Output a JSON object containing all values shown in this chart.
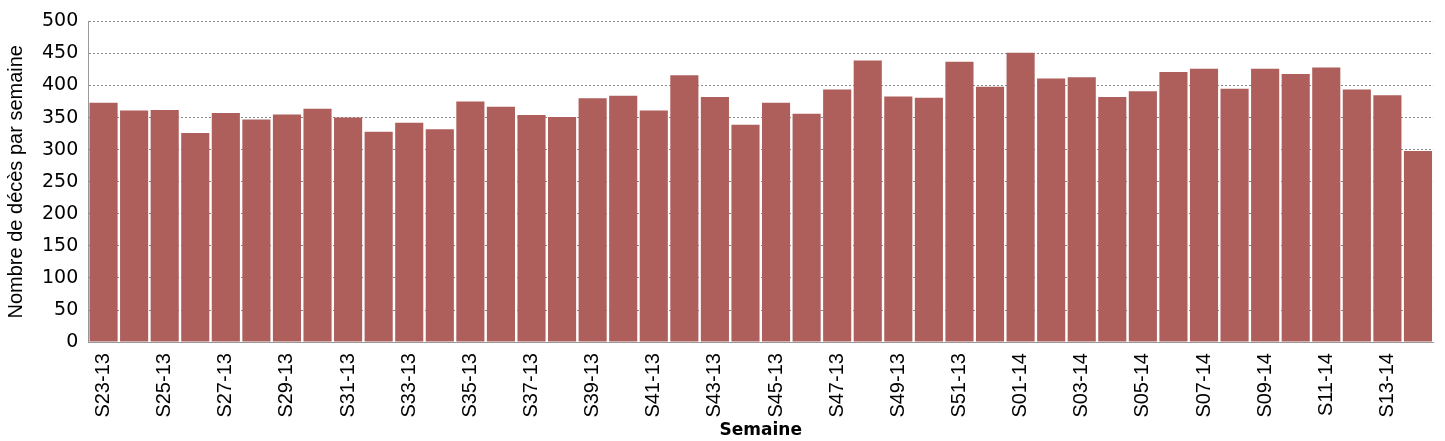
{
  "chart_data": {
    "type": "bar",
    "xlabel": "Semaine",
    "ylabel": "Nombre de décès par semaine",
    "categories": [
      "S23-13",
      null,
      "S25-13",
      null,
      "S27-13",
      null,
      "S29-13",
      null,
      "S31-13",
      null,
      "S33-13",
      null,
      "S35-13",
      null,
      "S37-13",
      null,
      "S39-13",
      null,
      "S41-13",
      null,
      "S43-13",
      null,
      "S45-13",
      null,
      "S47-13",
      null,
      "S49-13",
      null,
      "S51-13",
      null,
      "S01-14",
      null,
      "S03-14",
      null,
      "S05-14",
      null,
      "S07-14",
      null,
      "S09-14",
      null,
      "S11-14",
      null,
      "S13-14",
      null
    ],
    "values": [
      373,
      361,
      362,
      326,
      357,
      347,
      355,
      364,
      350,
      328,
      342,
      332,
      375,
      367,
      354,
      351,
      380,
      384,
      361,
      416,
      382,
      339,
      373,
      356,
      394,
      439,
      383,
      381,
      437,
      398,
      451,
      411,
      413,
      382,
      391,
      421,
      426,
      395,
      426,
      418,
      428,
      394,
      385,
      298
    ],
    "color": "#ae5f5b",
    "ylim": [
      0,
      500
    ],
    "yticks": [
      0,
      50,
      100,
      150,
      200,
      250,
      300,
      350,
      400,
      450,
      500
    ],
    "grid": "y",
    "legend": false
  }
}
